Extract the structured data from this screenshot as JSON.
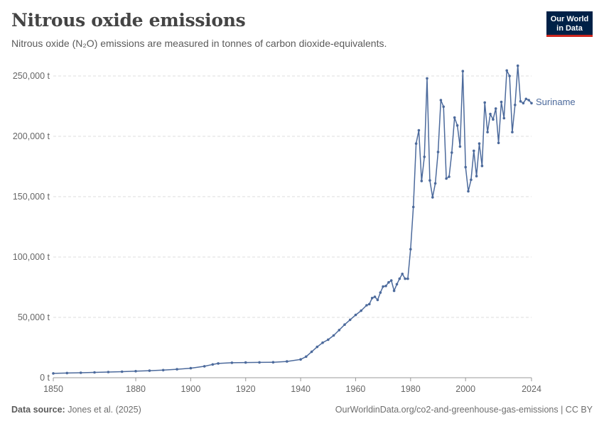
{
  "header": {
    "title": "Nitrous oxide emissions",
    "subtitle": "Nitrous oxide (N₂O) emissions are measured in tonnes of carbon dioxide-equivalents.",
    "logo_line1": "Our World",
    "logo_line2": "in Data"
  },
  "footer": {
    "source_label": "Data source:",
    "source_value": "Jones et al. (2025)",
    "url": "OurWorldinData.org/co2-and-greenhouse-gas-emissions | CC BY"
  },
  "colors": {
    "series": "#4c6a9c",
    "grid": "#dddddd",
    "logo_bg": "#002147",
    "logo_accent": "#ce261e"
  },
  "chart_data": {
    "type": "line",
    "title": "Nitrous oxide emissions",
    "xlabel": "",
    "ylabel": "",
    "xlim": [
      1850,
      2024
    ],
    "ylim": [
      0,
      250000
    ],
    "grid": "horizontal dashed",
    "y_ticks": [
      0,
      50000,
      100000,
      150000,
      200000,
      250000
    ],
    "y_tick_labels": [
      "0 t",
      "50,000 t",
      "100,000 t",
      "150,000 t",
      "200,000 t",
      "250,000 t"
    ],
    "x_ticks": [
      1850,
      1880,
      1900,
      1920,
      1940,
      1960,
      1980,
      2000,
      2024
    ],
    "x_tick_labels": [
      "1850",
      "1880",
      "1900",
      "1920",
      "1940",
      "1960",
      "1980",
      "2000",
      "2024"
    ],
    "series": [
      {
        "name": "Suriname",
        "points": [
          [
            1850,
            3600
          ],
          [
            1855,
            3900
          ],
          [
            1860,
            4100
          ],
          [
            1865,
            4400
          ],
          [
            1870,
            4700
          ],
          [
            1875,
            5000
          ],
          [
            1880,
            5400
          ],
          [
            1885,
            5800
          ],
          [
            1890,
            6300
          ],
          [
            1895,
            7000
          ],
          [
            1900,
            7900
          ],
          [
            1905,
            9500
          ],
          [
            1908,
            11000
          ],
          [
            1910,
            11800
          ],
          [
            1915,
            12400
          ],
          [
            1920,
            12600
          ],
          [
            1925,
            12700
          ],
          [
            1930,
            12800
          ],
          [
            1935,
            13500
          ],
          [
            1940,
            15200
          ],
          [
            1942,
            17500
          ],
          [
            1944,
            21500
          ],
          [
            1946,
            25500
          ],
          [
            1948,
            29000
          ],
          [
            1950,
            31500
          ],
          [
            1952,
            35000
          ],
          [
            1954,
            39500
          ],
          [
            1956,
            44000
          ],
          [
            1958,
            48000
          ],
          [
            1960,
            52000
          ],
          [
            1962,
            55500
          ],
          [
            1964,
            60000
          ],
          [
            1965,
            61000
          ],
          [
            1966,
            66000
          ],
          [
            1967,
            67000
          ],
          [
            1968,
            64500
          ],
          [
            1969,
            70500
          ],
          [
            1970,
            75500
          ],
          [
            1971,
            76000
          ],
          [
            1972,
            79000
          ],
          [
            1973,
            80500
          ],
          [
            1974,
            72000
          ],
          [
            1975,
            77500
          ],
          [
            1976,
            82000
          ],
          [
            1977,
            86000
          ],
          [
            1978,
            82000
          ],
          [
            1979,
            82000
          ],
          [
            1980,
            106500
          ],
          [
            1981,
            141500
          ],
          [
            1982,
            194000
          ],
          [
            1983,
            205000
          ],
          [
            1984,
            163000
          ],
          [
            1985,
            183000
          ],
          [
            1986,
            248000
          ],
          [
            1987,
            163500
          ],
          [
            1988,
            149500
          ],
          [
            1989,
            161000
          ],
          [
            1990,
            187000
          ],
          [
            1991,
            230000
          ],
          [
            1992,
            224500
          ],
          [
            1993,
            165000
          ],
          [
            1994,
            166500
          ],
          [
            1995,
            186500
          ],
          [
            1996,
            215500
          ],
          [
            1997,
            209000
          ],
          [
            1998,
            191500
          ],
          [
            1999,
            254000
          ],
          [
            2000,
            174500
          ],
          [
            2001,
            154500
          ],
          [
            2002,
            164000
          ],
          [
            2003,
            188000
          ],
          [
            2004,
            167000
          ],
          [
            2005,
            194000
          ],
          [
            2006,
            175500
          ],
          [
            2007,
            228000
          ],
          [
            2008,
            203500
          ],
          [
            2009,
            218500
          ],
          [
            2010,
            214000
          ],
          [
            2011,
            223000
          ],
          [
            2012,
            194500
          ],
          [
            2013,
            228500
          ],
          [
            2014,
            215000
          ],
          [
            2015,
            254500
          ],
          [
            2016,
            250000
          ],
          [
            2017,
            203500
          ],
          [
            2018,
            226000
          ],
          [
            2019,
            258500
          ],
          [
            2020,
            229000
          ],
          [
            2021,
            227500
          ],
          [
            2022,
            231000
          ],
          [
            2023,
            230000
          ],
          [
            2024,
            227500
          ]
        ]
      }
    ]
  }
}
